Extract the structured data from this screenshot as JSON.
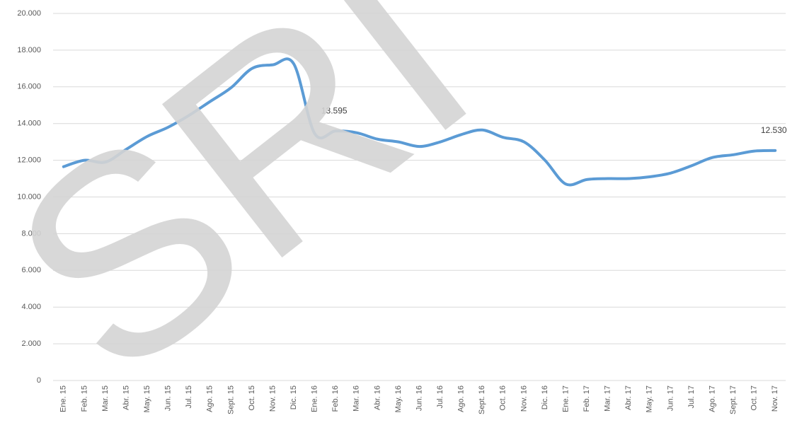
{
  "chart_data": {
    "type": "line",
    "watermark": "SRI",
    "categories": [
      "Ene. 15",
      "Feb. 15",
      "Mar. 15",
      "Abr. 15",
      "May. 15",
      "Jun. 15",
      "Jul. 15",
      "Ago. 15",
      "Sept. 15",
      "Oct. 15",
      "Nov. 15",
      "Dic. 15",
      "Ene. 16",
      "Feb. 16",
      "Mar. 16",
      "Abr. 16",
      "May. 16",
      "Jun. 16",
      "Jul. 16",
      "Ago. 16",
      "Sept. 16",
      "Oct. 16",
      "Nov. 16",
      "Dic. 16",
      "Ene. 17",
      "Feb. 17",
      "Mar. 17",
      "Abr. 17",
      "May. 17",
      "Jun. 17",
      "Jul. 17",
      "Ago. 17",
      "Sept. 17",
      "Oct. 17",
      "Nov. 17"
    ],
    "series": [
      {
        "color": "#5b9bd5",
        "values": [
          11650,
          12000,
          11900,
          12600,
          13300,
          13800,
          14450,
          15200,
          15950,
          17000,
          17200,
          17250,
          13450,
          13595,
          13500,
          13150,
          13000,
          12750,
          13000,
          13400,
          13650,
          13250,
          13000,
          12000,
          10700,
          10950,
          11000,
          11000,
          11100,
          11300,
          11700,
          12150,
          12300,
          12500,
          12530
        ],
        "value_labels": [
          null,
          null,
          null,
          null,
          null,
          null,
          null,
          null,
          null,
          null,
          null,
          null,
          null,
          "13.595",
          null,
          null,
          null,
          null,
          null,
          null,
          null,
          null,
          null,
          null,
          null,
          null,
          null,
          null,
          null,
          null,
          null,
          null,
          null,
          null,
          "12.530"
        ]
      }
    ],
    "ylim": [
      0,
      20000
    ],
    "yticks": [
      0,
      {
        "value": 2000,
        "label": "2.000"
      },
      {
        "value": 4000,
        "label": "4.000"
      },
      {
        "value": 6000,
        "label": "6.000"
      },
      {
        "value": 8000,
        "label": "8.000"
      },
      {
        "value": 10000,
        "label": "10.000"
      },
      {
        "value": 12000,
        "label": "12.000"
      },
      {
        "value": 14000,
        "label": "14.000"
      },
      {
        "value": 16000,
        "label": "16.000"
      },
      {
        "value": 18000,
        "label": "18.000"
      },
      {
        "value": 20000,
        "label": "20.000"
      }
    ],
    "grid": true
  }
}
